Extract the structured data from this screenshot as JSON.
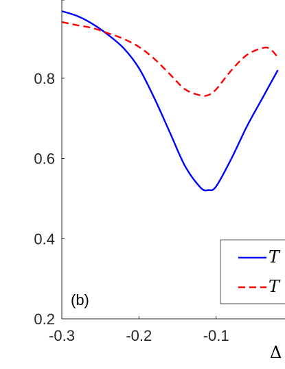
{
  "chart_data": {
    "type": "line",
    "panel_label": "(b)",
    "xlabel": "Δ",
    "ylabel": "",
    "xlim": [
      -0.3,
      -0.02
    ],
    "ylim": [
      0.2,
      1.0
    ],
    "x_ticks": [
      -0.3,
      -0.2,
      -0.1
    ],
    "x_tick_labels": [
      "-0.3",
      "-0.2",
      "-0.1"
    ],
    "y_ticks": [
      0.2,
      0.4,
      0.6,
      0.8
    ],
    "y_tick_labels": [
      "0.2",
      "0.4",
      "0.6",
      "0.8"
    ],
    "grid": false,
    "legend_position": "bottom-right",
    "series": [
      {
        "name": "T",
        "color": "#0000ff",
        "style": "solid",
        "x": [
          -0.3,
          -0.28,
          -0.26,
          -0.24,
          -0.22,
          -0.2,
          -0.18,
          -0.16,
          -0.14,
          -0.12,
          -0.11,
          -0.1,
          -0.08,
          -0.06,
          -0.04,
          -0.03,
          -0.02
        ],
        "y": [
          0.967,
          0.955,
          0.935,
          0.908,
          0.875,
          0.825,
          0.75,
          0.665,
          0.58,
          0.527,
          0.521,
          0.53,
          0.6,
          0.68,
          0.75,
          0.785,
          0.82
        ]
      },
      {
        "name": "T",
        "color": "#ff0000",
        "style": "dashed",
        "x": [
          -0.3,
          -0.28,
          -0.26,
          -0.24,
          -0.22,
          -0.2,
          -0.18,
          -0.16,
          -0.14,
          -0.12,
          -0.11,
          -0.1,
          -0.08,
          -0.06,
          -0.04,
          -0.03,
          -0.02
        ],
        "y": [
          0.94,
          0.932,
          0.925,
          0.912,
          0.898,
          0.878,
          0.848,
          0.81,
          0.772,
          0.757,
          0.758,
          0.772,
          0.82,
          0.858,
          0.875,
          0.873,
          0.852
        ]
      }
    ]
  }
}
